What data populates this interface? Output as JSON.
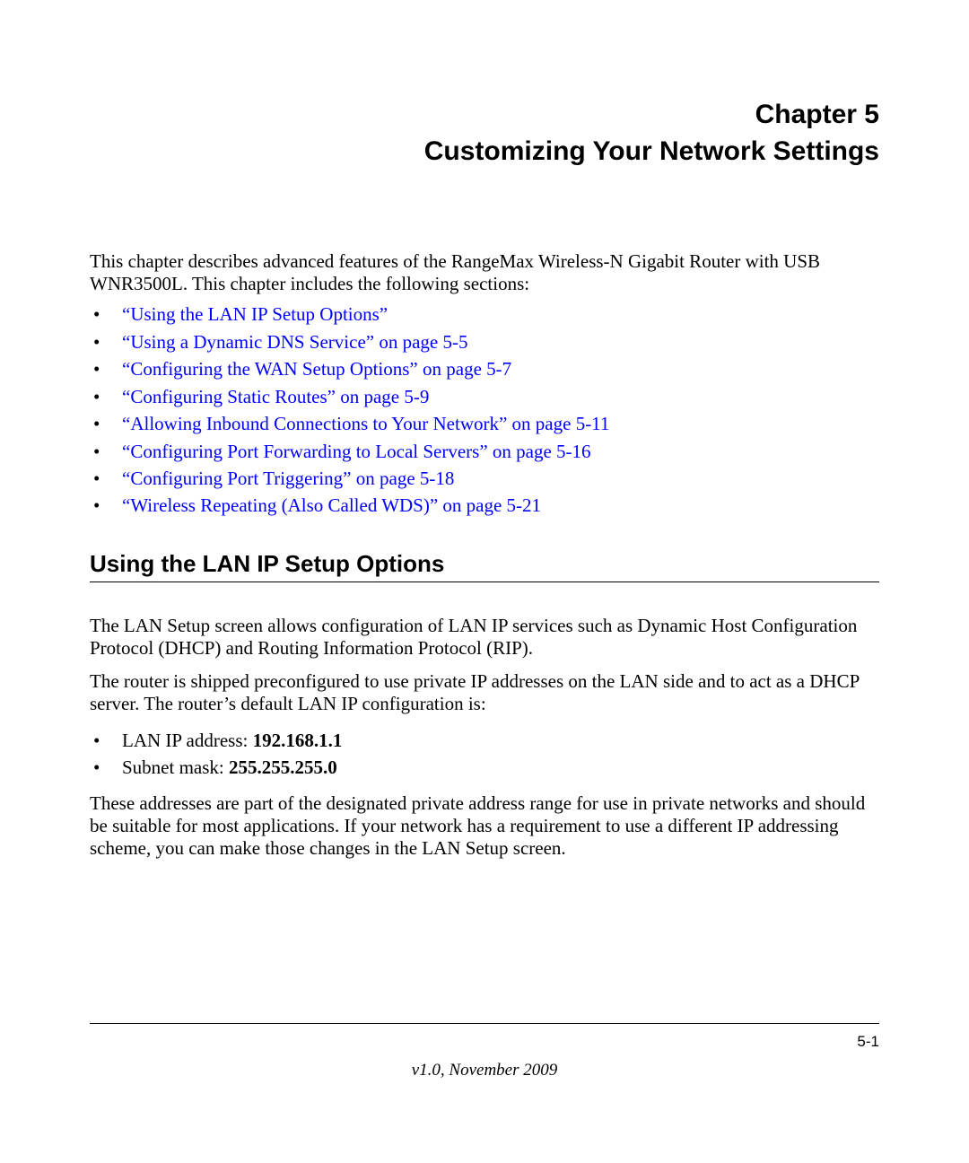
{
  "chapter": {
    "number": "Chapter 5",
    "title": "Customizing Your Network Settings"
  },
  "intro": "This chapter describes advanced features of the RangeMax Wireless-N Gigabit Router with USB WNR3500L. This chapter includes the following sections:",
  "toc": [
    "“Using the LAN IP Setup Options”",
    "“Using a Dynamic DNS Service” on page 5-5",
    "“Configuring the WAN Setup Options” on page 5-7",
    "“Configuring Static Routes” on page 5-9",
    "“Allowing Inbound Connections to Your Network” on page 5-11",
    "“Configuring Port Forwarding to Local Servers” on page 5-16",
    "“Configuring Port Triggering” on page 5-18",
    "“Wireless Repeating (Also Called WDS)” on page 5-21"
  ],
  "section": {
    "heading": "Using the LAN IP Setup Options",
    "para1": "The LAN Setup screen allows configuration of LAN IP services such as Dynamic Host Configuration Protocol (DHCP) and Routing Information Protocol (RIP).",
    "para2": "The router is shipped preconfigured to use private IP addresses on the LAN side and to act as a DHCP server. The router’s default LAN IP configuration is:",
    "config": {
      "lan_ip_label": "LAN IP address: ",
      "lan_ip_value": "192.168.1.1",
      "subnet_label": "Subnet mask: ",
      "subnet_value": "255.255.255.0"
    },
    "para3": "These addresses are part of the designated private address range for use in private networks and should be suitable for most applications. If your network has a requirement to use a different IP addressing scheme, you can make those changes in the LAN Setup screen."
  },
  "footer": {
    "page_number": "5-1",
    "version": "v1.0, November 2009"
  },
  "styles": {
    "link_color": "#0000ff",
    "text_color": "#000000",
    "background_color": "#ffffff",
    "heading_font": "Arial",
    "body_font": "Times New Roman"
  }
}
